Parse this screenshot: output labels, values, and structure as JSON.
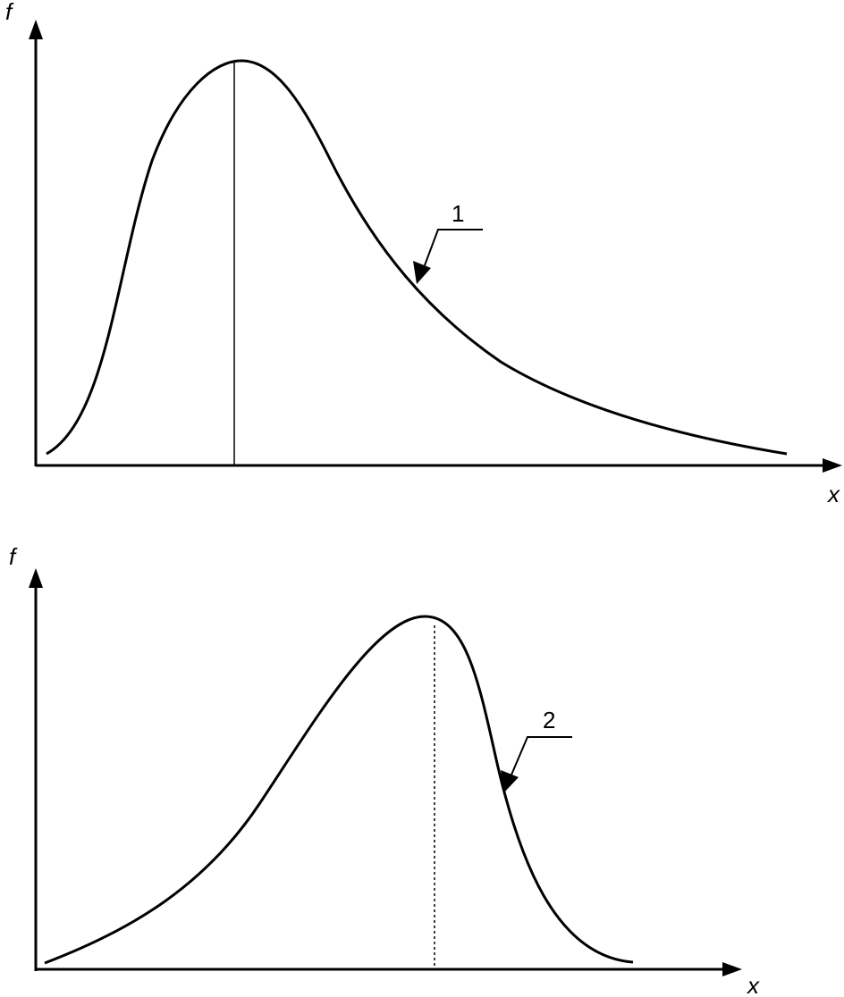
{
  "panels": [
    {
      "y_label": "f",
      "x_label": "x",
      "curve_label": "1"
    },
    {
      "y_label": "f",
      "x_label": "x",
      "curve_label": "2"
    }
  ]
}
